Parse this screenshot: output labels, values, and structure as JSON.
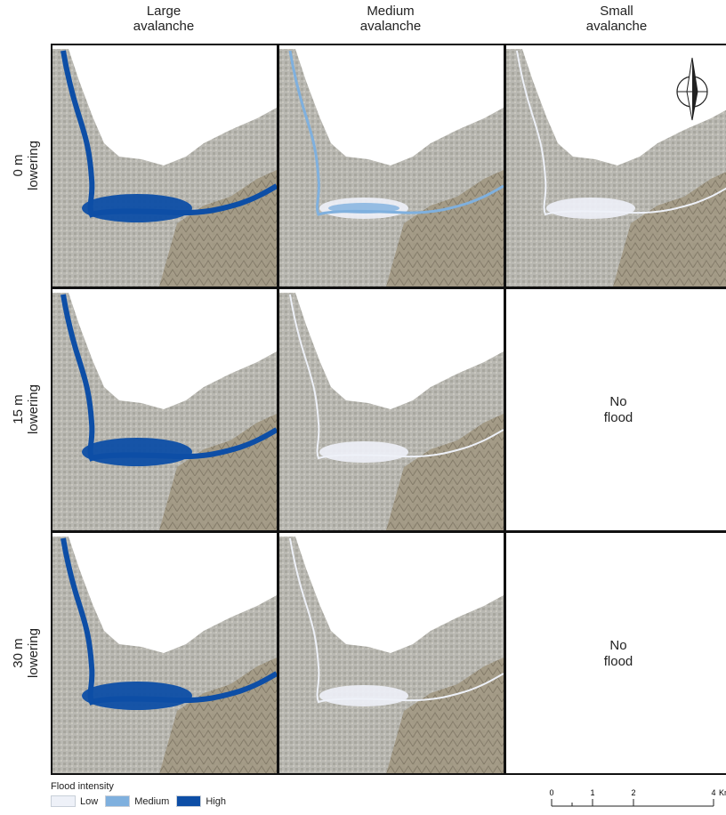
{
  "columns": [
    "Large\navalanche",
    "Medium\navalanche",
    "Small\navalanche"
  ],
  "rows": [
    "0 m\nlowering",
    "15 m\nlowering",
    "30 m\nlowering"
  ],
  "no_flood_label": "No\nflood",
  "panels": [
    {
      "row": 0,
      "col": 0,
      "flood": true,
      "intensity": "high"
    },
    {
      "row": 0,
      "col": 1,
      "flood": true,
      "intensity": "medium"
    },
    {
      "row": 0,
      "col": 2,
      "flood": true,
      "intensity": "low"
    },
    {
      "row": 1,
      "col": 0,
      "flood": true,
      "intensity": "high"
    },
    {
      "row": 1,
      "col": 1,
      "flood": true,
      "intensity": "low"
    },
    {
      "row": 1,
      "col": 2,
      "flood": false
    },
    {
      "row": 2,
      "col": 0,
      "flood": true,
      "intensity": "high"
    },
    {
      "row": 2,
      "col": 1,
      "flood": true,
      "intensity": "low"
    },
    {
      "row": 2,
      "col": 2,
      "flood": false
    }
  ],
  "legend": {
    "title": "Flood intensity",
    "items": [
      {
        "label": "Low",
        "color": "#eef1f8"
      },
      {
        "label": "Medium",
        "color": "#7fb0de"
      },
      {
        "label": "High",
        "color": "#0d4ea6"
      }
    ]
  },
  "scale_bar": {
    "ticks": [
      "0",
      "1",
      "2",
      "4"
    ],
    "unit": "Km"
  },
  "north_arrow": {
    "icon": "north-arrow-icon",
    "label": "N"
  }
}
